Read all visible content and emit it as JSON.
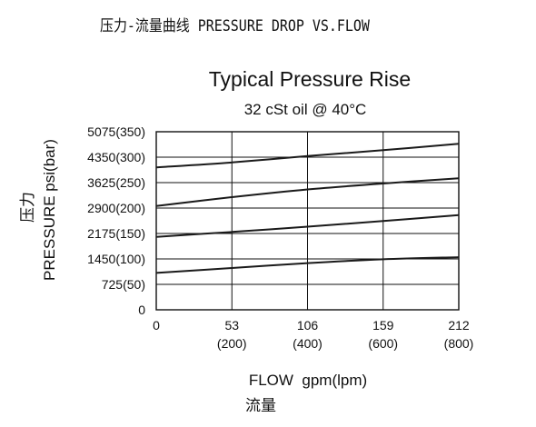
{
  "header": {
    "title": "压力-流量曲线 PRESSURE DROP VS.FLOW"
  },
  "chart_data": {
    "type": "line",
    "title": "Typical Pressure Rise",
    "subtitle": "32 cSt oil @ 40°C",
    "xlabel": "FLOW  gpm(lpm)",
    "xlabel_cn": "流量",
    "ylabel": "PRESSURE  psi(bar)",
    "ylabel_cn": "压力",
    "x_ticks": [
      {
        "value": 0,
        "label": "0",
        "sublabel": ""
      },
      {
        "value": 53,
        "label": "53",
        "sublabel": "(200)"
      },
      {
        "value": 106,
        "label": "106",
        "sublabel": "(400)"
      },
      {
        "value": 159,
        "label": "159",
        "sublabel": "(600)"
      },
      {
        "value": 212,
        "label": "212",
        "sublabel": "(800)"
      }
    ],
    "y_ticks": [
      {
        "value": 0,
        "label": "0"
      },
      {
        "value": 725,
        "label": "725(50)"
      },
      {
        "value": 1450,
        "label": "1450(100)"
      },
      {
        "value": 2175,
        "label": "2175(150)"
      },
      {
        "value": 2900,
        "label": "2900(200)"
      },
      {
        "value": 3625,
        "label": "3625(250)"
      },
      {
        "value": 4350,
        "label": "4350(300)"
      },
      {
        "value": 5075,
        "label": "5075(350)"
      }
    ],
    "xlim": [
      0,
      212
    ],
    "ylim": [
      0,
      5075
    ],
    "grid": true,
    "series": [
      {
        "x": [
          0,
          53,
          106,
          159,
          212
        ],
        "y": [
          1050,
          1190,
          1330,
          1440,
          1500
        ]
      },
      {
        "x": [
          0,
          53,
          106,
          159,
          212
        ],
        "y": [
          2080,
          2220,
          2370,
          2530,
          2700
        ]
      },
      {
        "x": [
          0,
          53,
          106,
          159,
          212
        ],
        "y": [
          2960,
          3210,
          3430,
          3600,
          3750
        ]
      },
      {
        "x": [
          0,
          53,
          106,
          159,
          212
        ],
        "y": [
          4060,
          4200,
          4380,
          4550,
          4730
        ]
      }
    ],
    "line_color": "#1a1a1a"
  }
}
